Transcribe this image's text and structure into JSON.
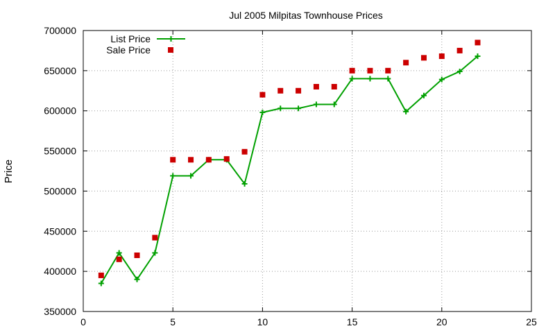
{
  "chart_data": {
    "type": "line",
    "title": "Jul 2005 Milpitas Townhouse Prices",
    "xlabel": "",
    "ylabel": "Price",
    "xlim": [
      0,
      25
    ],
    "ylim": [
      350000,
      700000
    ],
    "x_ticks": [
      0,
      5,
      10,
      15,
      20,
      25
    ],
    "y_ticks": [
      350000,
      400000,
      450000,
      500000,
      550000,
      600000,
      650000,
      700000
    ],
    "grid": true,
    "legend_position": "top-left",
    "series": [
      {
        "name": "List Price",
        "style": "line+cross-markers",
        "color": "#00a000",
        "x": [
          1,
          2,
          3,
          4,
          5,
          6,
          7,
          8,
          9,
          10,
          11,
          12,
          13,
          14,
          15,
          16,
          17,
          18,
          19,
          20,
          21,
          22
        ],
        "values": [
          385000,
          423000,
          390000,
          423000,
          519000,
          519000,
          539000,
          539000,
          509000,
          598000,
          603000,
          603000,
          608000,
          608000,
          640000,
          640000,
          640000,
          599000,
          619000,
          639000,
          649000,
          668000
        ]
      },
      {
        "name": "Sale Price",
        "style": "square-markers",
        "color": "#cc0000",
        "x": [
          1,
          2,
          3,
          4,
          5,
          6,
          7,
          8,
          9,
          10,
          11,
          12,
          13,
          14,
          15,
          16,
          17,
          18,
          19,
          20,
          21,
          22
        ],
        "values": [
          395000,
          415000,
          420000,
          442000,
          539000,
          539000,
          539000,
          540000,
          549000,
          620000,
          625000,
          625000,
          630000,
          630000,
          650000,
          650000,
          650000,
          660000,
          666000,
          668000,
          675000,
          685000
        ]
      }
    ]
  }
}
